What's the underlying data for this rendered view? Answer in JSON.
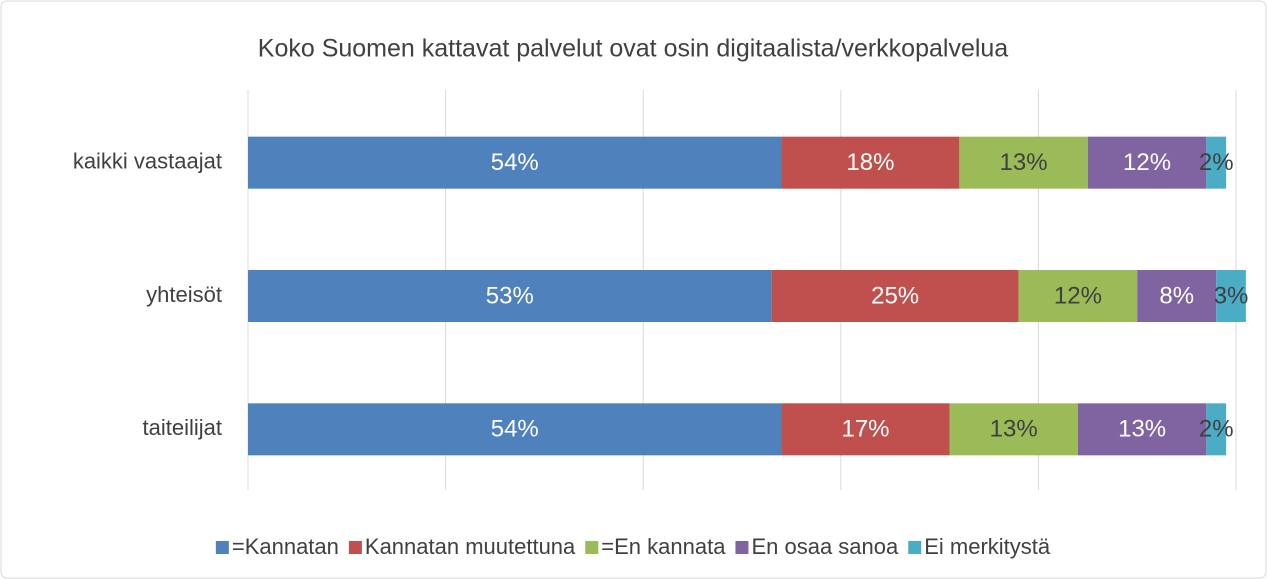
{
  "chart_data": {
    "type": "bar",
    "orientation": "horizontal",
    "stacked": true,
    "title": "Koko Suomen kattavat palvelut ovat osin digitaalista/verkkopalvelua",
    "categories": [
      "kaikki vastaajat",
      "yhteisöt",
      "taiteilijat"
    ],
    "series": [
      {
        "name": "=Kannatan",
        "color": "#4f81bd",
        "values": [
          54,
          53,
          54
        ],
        "value_labels": [
          "54%",
          "53%",
          "54%"
        ]
      },
      {
        "name": "Kannatan muutettuna",
        "color": "#c0504d",
        "values": [
          18,
          25,
          17
        ],
        "value_labels": [
          "18%",
          "25%",
          "17%"
        ]
      },
      {
        "name": "=En kannata",
        "color": "#9bbb59",
        "values": [
          13,
          12,
          13
        ],
        "value_labels": [
          "13%",
          "12%",
          "13%"
        ]
      },
      {
        "name": "En osaa sanoa",
        "color": "#8064a2",
        "values": [
          12,
          8,
          13
        ],
        "value_labels": [
          "12%",
          "8%",
          "13%"
        ]
      },
      {
        "name": "Ei merkitystä",
        "color": "#4bacc6",
        "values": [
          2,
          3,
          2
        ],
        "value_labels": [
          "2%",
          "3%",
          "2%"
        ]
      }
    ],
    "xlim": [
      0,
      100
    ],
    "xticks": [
      0,
      20,
      40,
      60,
      80,
      100
    ],
    "grid": true,
    "legend": "bottom"
  }
}
